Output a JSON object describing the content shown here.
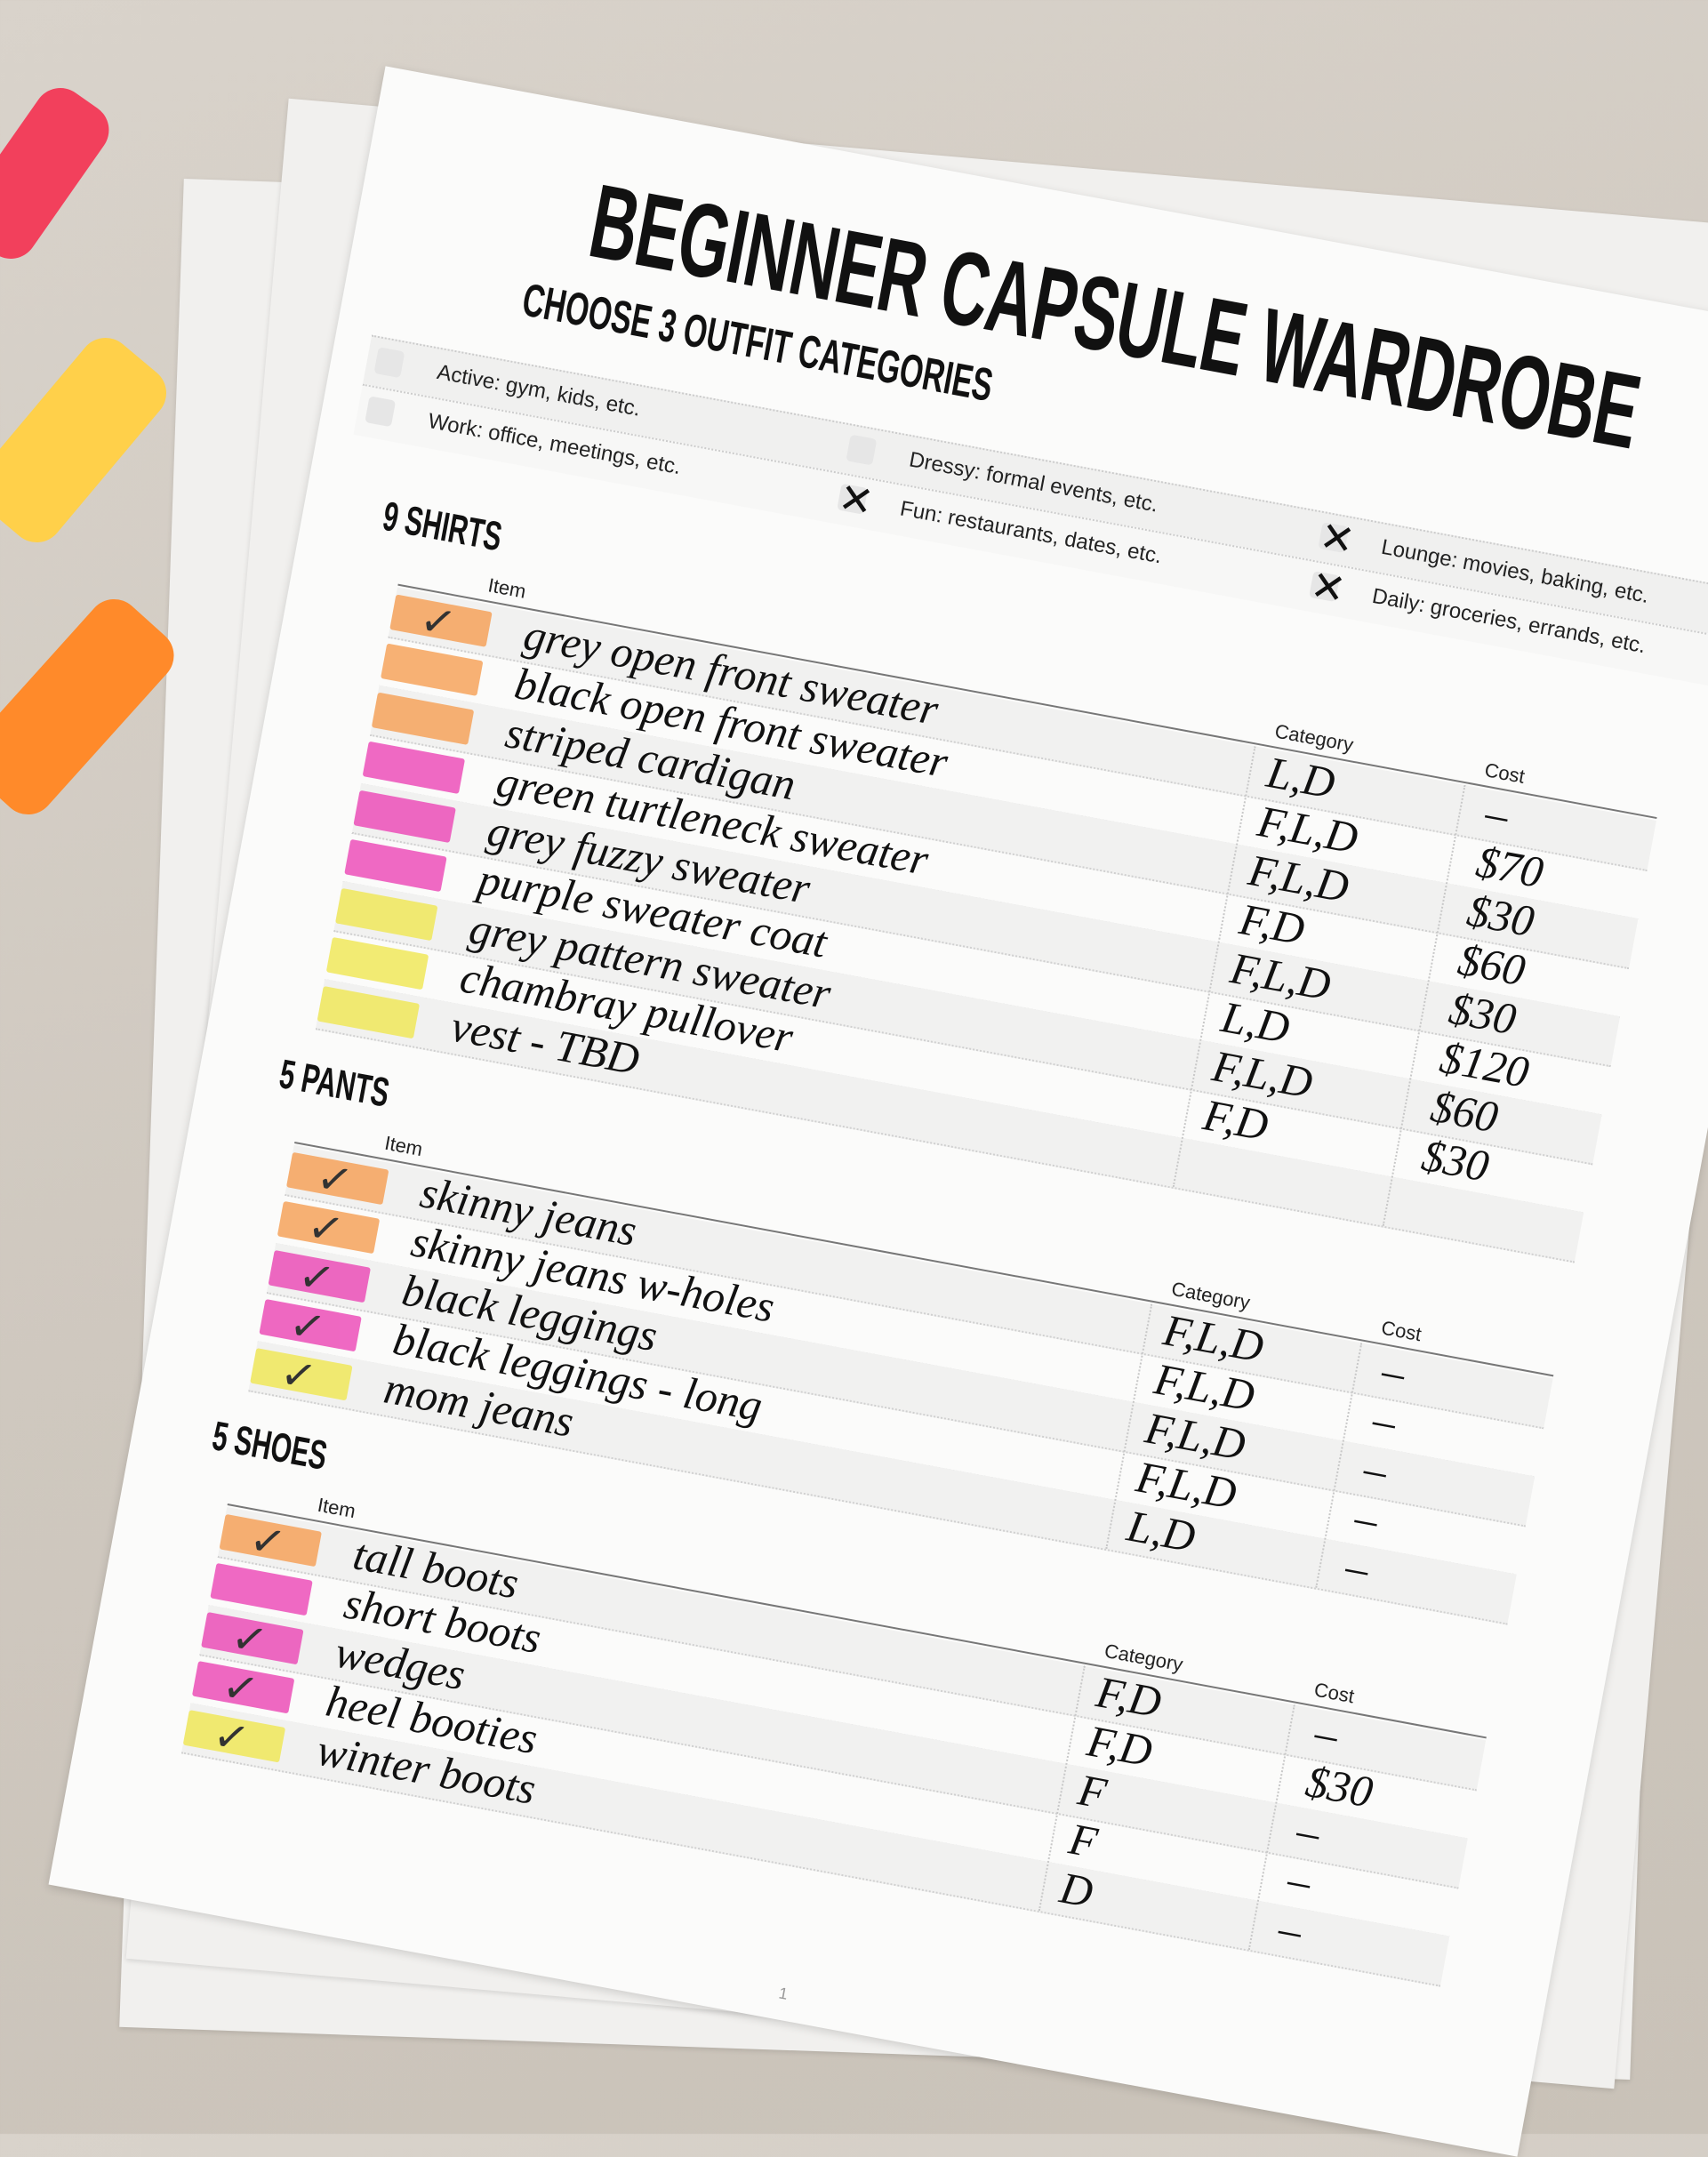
{
  "title": "BEGINNER CAPSULE WARDROBE",
  "categories_heading": "CHOOSE 3 OUTFIT CATEGORIES",
  "categories": [
    {
      "label": "Active: gym, kids, etc.",
      "checked": false
    },
    {
      "label": "Work: office, meetings, etc.",
      "checked": false
    },
    {
      "label": "Dressy: formal events, etc.",
      "checked": false
    },
    {
      "label": "Fun: restaurants, dates, etc.",
      "checked": true
    },
    {
      "label": "Lounge: movies, baking, etc.",
      "checked": true
    },
    {
      "label": "Daily: groceries, errands, etc.",
      "checked": true
    }
  ],
  "check_mark": "✕",
  "tick_mark": "✓",
  "column_headers": {
    "item": "Item",
    "category": "Category",
    "cost": "Cost"
  },
  "colors": {
    "orange": "#f6a35c",
    "pink": "#ec4fb8",
    "yellow": "#f0e85a"
  },
  "sections": [
    {
      "heading": "9 SHIRTS",
      "rows": [
        {
          "swatch": "orange",
          "checked": true,
          "item": "grey open front sweater",
          "category": "L,D",
          "cost": "–"
        },
        {
          "swatch": "orange",
          "checked": false,
          "item": "black open front sweater",
          "category": "F,L,D",
          "cost": "$70"
        },
        {
          "swatch": "orange",
          "checked": false,
          "item": "striped cardigan",
          "category": "F,L,D",
          "cost": "$30"
        },
        {
          "swatch": "pink",
          "checked": false,
          "item": "green turtleneck sweater",
          "category": "F,D",
          "cost": "$60"
        },
        {
          "swatch": "pink",
          "checked": false,
          "item": "grey fuzzy sweater",
          "category": "F,L,D",
          "cost": "$30"
        },
        {
          "swatch": "pink",
          "checked": false,
          "item": "purple sweater coat",
          "category": "L,D",
          "cost": "$120"
        },
        {
          "swatch": "yellow",
          "checked": false,
          "item": "grey pattern sweater",
          "category": "F,L,D",
          "cost": "$60"
        },
        {
          "swatch": "yellow",
          "checked": false,
          "item": "chambray pullover",
          "category": "F,D",
          "cost": "$30"
        },
        {
          "swatch": "yellow",
          "checked": false,
          "item": "vest - TBD",
          "category": "",
          "cost": ""
        }
      ]
    },
    {
      "heading": "5 PANTS",
      "rows": [
        {
          "swatch": "orange",
          "checked": true,
          "item": "skinny jeans",
          "category": "F,L,D",
          "cost": "–"
        },
        {
          "swatch": "orange",
          "checked": true,
          "item": "skinny jeans w-holes",
          "category": "F,L,D",
          "cost": "–"
        },
        {
          "swatch": "pink",
          "checked": true,
          "item": "black leggings",
          "category": "F,L,D",
          "cost": "–"
        },
        {
          "swatch": "pink",
          "checked": true,
          "item": "black leggings - long",
          "category": "F,L,D",
          "cost": "–"
        },
        {
          "swatch": "yellow",
          "checked": true,
          "item": "mom jeans",
          "category": "L,D",
          "cost": "–"
        }
      ]
    },
    {
      "heading": "5 SHOES",
      "rows": [
        {
          "swatch": "orange",
          "checked": true,
          "item": "tall boots",
          "category": "F,D",
          "cost": "–"
        },
        {
          "swatch": "pink",
          "checked": false,
          "item": "short boots",
          "category": "F,D",
          "cost": "$30"
        },
        {
          "swatch": "pink",
          "checked": true,
          "item": "wedges",
          "category": "F",
          "cost": "–"
        },
        {
          "swatch": "pink",
          "checked": true,
          "item": "heel booties",
          "category": "F",
          "cost": "–"
        },
        {
          "swatch": "yellow",
          "checked": true,
          "item": "winter boots",
          "category": "D",
          "cost": "–"
        }
      ]
    }
  ],
  "page_number": "1"
}
